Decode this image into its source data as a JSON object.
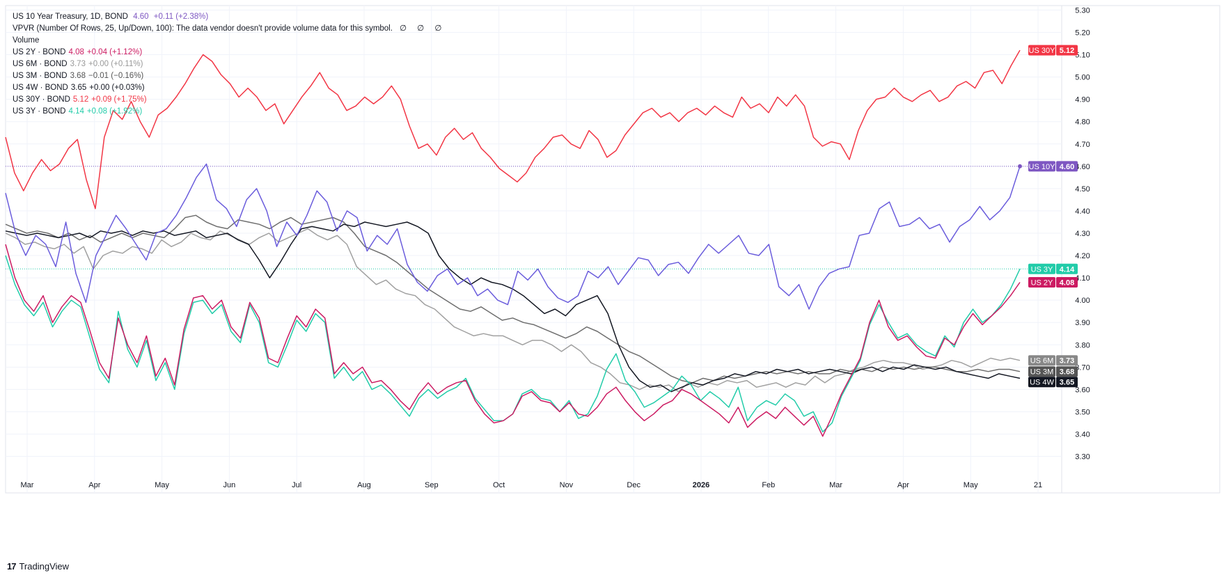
{
  "chart_data": {
    "type": "line",
    "x_ticks": [
      "Mar",
      "Apr",
      "May",
      "Jun",
      "Jul",
      "Aug",
      "Sep",
      "Oct",
      "Nov",
      "Dec",
      "2026",
      "Feb",
      "Mar",
      "Apr",
      "May",
      "21"
    ],
    "y_ticks": [
      "5.30",
      "5.20",
      "5.10",
      "5.00",
      "4.90",
      "4.80",
      "4.70",
      "4.60",
      "4.50",
      "4.40",
      "4.30",
      "4.20",
      "4.10",
      "4.00",
      "3.90",
      "3.80",
      "3.70",
      "3.60",
      "3.50",
      "3.40",
      "3.30"
    ],
    "ylim": [
      3.23,
      5.32
    ],
    "grid": true,
    "series": [
      {
        "key": "us10y",
        "color": "#6a5cdc",
        "label": "US 10Y",
        "last": "4.60",
        "values": [
          4.48,
          4.3,
          4.2,
          4.29,
          4.25,
          4.15,
          4.35,
          4.12,
          3.99,
          4.2,
          4.29,
          4.38,
          4.32,
          4.25,
          4.18,
          4.3,
          4.32,
          4.38,
          4.46,
          4.55,
          4.61,
          4.45,
          4.41,
          4.33,
          4.45,
          4.5,
          4.4,
          4.24,
          4.35,
          4.29,
          4.38,
          4.49,
          4.44,
          4.31,
          4.4,
          4.37,
          4.22,
          4.29,
          4.25,
          4.32,
          4.16,
          4.08,
          4.04,
          4.11,
          4.14,
          4.07,
          4.1,
          4.02,
          4.05,
          4.0,
          3.98,
          4.13,
          4.09,
          4.14,
          4.06,
          4.01,
          3.99,
          4.02,
          4.13,
          4.1,
          4.15,
          4.07,
          4.13,
          4.19,
          4.18,
          4.11,
          4.16,
          4.17,
          4.12,
          4.19,
          4.25,
          4.21,
          4.25,
          4.29,
          4.21,
          4.2,
          4.25,
          4.06,
          4.02,
          4.07,
          3.96,
          4.06,
          4.12,
          4.14,
          4.15,
          4.29,
          4.3,
          4.41,
          4.44,
          4.33,
          4.34,
          4.37,
          4.32,
          4.34,
          4.26,
          4.33,
          4.36,
          4.42,
          4.36,
          4.4,
          4.46,
          4.6
        ]
      },
      {
        "key": "us30y",
        "color": "#f23645",
        "label": "US 30Y",
        "last": "5.12",
        "values": [
          4.73,
          4.57,
          4.49,
          4.57,
          4.63,
          4.58,
          4.61,
          4.68,
          4.72,
          4.54,
          4.41,
          4.73,
          4.85,
          4.81,
          4.89,
          4.8,
          4.73,
          4.83,
          4.86,
          4.91,
          4.97,
          5.04,
          5.1,
          5.07,
          5.01,
          4.97,
          4.91,
          4.95,
          4.91,
          4.85,
          4.88,
          4.79,
          4.85,
          4.91,
          4.96,
          5.02,
          4.95,
          4.92,
          4.85,
          4.87,
          4.91,
          4.88,
          4.91,
          4.96,
          4.9,
          4.78,
          4.68,
          4.7,
          4.65,
          4.73,
          4.77,
          4.72,
          4.75,
          4.68,
          4.64,
          4.59,
          4.56,
          4.53,
          4.57,
          4.64,
          4.68,
          4.73,
          4.74,
          4.7,
          4.68,
          4.76,
          4.72,
          4.64,
          4.67,
          4.74,
          4.79,
          4.84,
          4.86,
          4.82,
          4.84,
          4.8,
          4.84,
          4.86,
          4.83,
          4.87,
          4.84,
          4.82,
          4.91,
          4.86,
          4.88,
          4.84,
          4.91,
          4.87,
          4.92,
          4.87,
          4.73,
          4.69,
          4.71,
          4.7,
          4.63,
          4.76,
          4.85,
          4.9,
          4.91,
          4.95,
          4.91,
          4.89,
          4.92,
          4.94,
          4.89,
          4.91,
          4.96,
          4.98,
          4.95,
          5.02,
          5.03,
          4.97,
          5.05,
          5.12
        ]
      },
      {
        "key": "us3y",
        "color": "#22cca9",
        "label": "US 3Y",
        "last": "4.14",
        "values": [
          4.2,
          4.07,
          3.98,
          3.93,
          3.99,
          3.88,
          3.95,
          4.0,
          3.97,
          3.83,
          3.69,
          3.63,
          3.95,
          3.78,
          3.7,
          3.82,
          3.64,
          3.72,
          3.6,
          3.85,
          3.99,
          4.0,
          3.94,
          3.98,
          3.86,
          3.81,
          3.98,
          3.9,
          3.72,
          3.7,
          3.8,
          3.91,
          3.86,
          3.94,
          3.9,
          3.65,
          3.7,
          3.64,
          3.68,
          3.6,
          3.62,
          3.58,
          3.53,
          3.48,
          3.56,
          3.6,
          3.56,
          3.59,
          3.61,
          3.65,
          3.56,
          3.51,
          3.46,
          3.46,
          3.49,
          3.58,
          3.6,
          3.56,
          3.55,
          3.5,
          3.55,
          3.47,
          3.49,
          3.57,
          3.69,
          3.76,
          3.64,
          3.59,
          3.52,
          3.54,
          3.57,
          3.6,
          3.66,
          3.62,
          3.55,
          3.59,
          3.56,
          3.52,
          3.61,
          3.46,
          3.52,
          3.55,
          3.53,
          3.58,
          3.55,
          3.48,
          3.5,
          3.41,
          3.45,
          3.57,
          3.65,
          3.73,
          3.89,
          3.98,
          3.9,
          3.83,
          3.85,
          3.8,
          3.77,
          3.75,
          3.84,
          3.79,
          3.9,
          3.96,
          3.9,
          3.93,
          3.98,
          4.05,
          4.14
        ]
      },
      {
        "key": "us2y",
        "color": "#cc1b62",
        "label": "US 2Y",
        "last": "4.08",
        "values": [
          4.25,
          4.1,
          4.0,
          3.95,
          4.02,
          3.9,
          3.97,
          4.02,
          3.99,
          3.86,
          3.72,
          3.65,
          3.92,
          3.8,
          3.72,
          3.84,
          3.66,
          3.74,
          3.62,
          3.87,
          4.01,
          4.02,
          3.96,
          4.0,
          3.88,
          3.83,
          3.99,
          3.92,
          3.74,
          3.72,
          3.83,
          3.93,
          3.88,
          3.96,
          3.92,
          3.67,
          3.72,
          3.67,
          3.7,
          3.63,
          3.64,
          3.6,
          3.55,
          3.51,
          3.58,
          3.63,
          3.58,
          3.61,
          3.63,
          3.64,
          3.55,
          3.49,
          3.45,
          3.46,
          3.49,
          3.57,
          3.59,
          3.55,
          3.54,
          3.5,
          3.54,
          3.49,
          3.48,
          3.52,
          3.58,
          3.61,
          3.55,
          3.5,
          3.46,
          3.49,
          3.53,
          3.55,
          3.6,
          3.58,
          3.55,
          3.52,
          3.49,
          3.45,
          3.52,
          3.43,
          3.47,
          3.5,
          3.47,
          3.52,
          3.48,
          3.44,
          3.48,
          3.39,
          3.48,
          3.58,
          3.66,
          3.74,
          3.9,
          4.0,
          3.88,
          3.82,
          3.84,
          3.79,
          3.75,
          3.74,
          3.83,
          3.8,
          3.88,
          3.94,
          3.89,
          3.93,
          3.97,
          4.02,
          4.08
        ]
      },
      {
        "key": "us6m",
        "color": "#a0a0a0",
        "label": "US 6M",
        "last": "3.73",
        "values": [
          4.3,
          4.28,
          4.25,
          4.26,
          4.24,
          4.23,
          4.25,
          4.21,
          4.24,
          4.14,
          4.2,
          4.22,
          4.21,
          4.24,
          4.23,
          4.21,
          4.27,
          4.24,
          4.26,
          4.3,
          4.28,
          4.27,
          4.31,
          4.29,
          4.27,
          4.25,
          4.28,
          4.3,
          4.26,
          4.28,
          4.3,
          4.32,
          4.29,
          4.27,
          4.29,
          4.25,
          4.15,
          4.11,
          4.07,
          4.09,
          4.05,
          4.03,
          4.02,
          3.98,
          3.96,
          3.92,
          3.88,
          3.86,
          3.84,
          3.85,
          3.84,
          3.84,
          3.82,
          3.8,
          3.82,
          3.82,
          3.8,
          3.77,
          3.8,
          3.77,
          3.72,
          3.7,
          3.67,
          3.63,
          3.62,
          3.6,
          3.62,
          3.61,
          3.62,
          3.59,
          3.63,
          3.61,
          3.63,
          3.62,
          3.64,
          3.63,
          3.64,
          3.61,
          3.62,
          3.63,
          3.61,
          3.63,
          3.62,
          3.66,
          3.63,
          3.66,
          3.67,
          3.69,
          3.7,
          3.72,
          3.73,
          3.72,
          3.72,
          3.71,
          3.69,
          3.7,
          3.71,
          3.73,
          3.72,
          3.7,
          3.72,
          3.74,
          3.73,
          3.74,
          3.73
        ]
      },
      {
        "key": "us3m",
        "color": "#6e6e6e",
        "label": "US 3M",
        "last": "3.68",
        "values": [
          4.34,
          4.32,
          4.3,
          4.31,
          4.3,
          4.28,
          4.3,
          4.27,
          4.29,
          4.26,
          4.28,
          4.3,
          4.28,
          4.3,
          4.29,
          4.28,
          4.32,
          4.37,
          4.38,
          4.35,
          4.33,
          4.32,
          4.36,
          4.35,
          4.34,
          4.32,
          4.35,
          4.37,
          4.34,
          4.35,
          4.36,
          4.37,
          4.35,
          4.3,
          4.24,
          4.22,
          4.2,
          4.17,
          4.13,
          4.09,
          4.05,
          4.02,
          3.99,
          3.96,
          3.95,
          3.97,
          3.94,
          3.91,
          3.92,
          3.9,
          3.89,
          3.87,
          3.85,
          3.83,
          3.85,
          3.88,
          3.86,
          3.83,
          3.8,
          3.77,
          3.75,
          3.72,
          3.69,
          3.66,
          3.64,
          3.63,
          3.65,
          3.64,
          3.66,
          3.65,
          3.66,
          3.67,
          3.68,
          3.67,
          3.68,
          3.67,
          3.68,
          3.67,
          3.67,
          3.69,
          3.68,
          3.69,
          3.68,
          3.7,
          3.69,
          3.7,
          3.69,
          3.7,
          3.7,
          3.69,
          3.68,
          3.68,
          3.69,
          3.68,
          3.69,
          3.69,
          3.68
        ]
      },
      {
        "key": "us4w",
        "color": "#131722",
        "label": "US 4W",
        "last": "3.65",
        "values": [
          4.31,
          4.3,
          4.29,
          4.3,
          4.29,
          4.28,
          4.29,
          4.3,
          4.28,
          4.31,
          4.3,
          4.31,
          4.29,
          4.31,
          4.3,
          4.31,
          4.29,
          4.3,
          4.31,
          4.28,
          4.29,
          4.3,
          4.27,
          4.25,
          4.18,
          4.1,
          4.17,
          4.25,
          4.32,
          4.33,
          4.32,
          4.31,
          4.34,
          4.33,
          4.35,
          4.34,
          4.33,
          4.34,
          4.35,
          4.33,
          4.3,
          4.2,
          4.14,
          4.1,
          4.07,
          4.1,
          4.08,
          4.07,
          4.05,
          4.02,
          3.98,
          3.94,
          3.96,
          3.93,
          3.98,
          4.0,
          4.02,
          3.94,
          3.8,
          3.7,
          3.64,
          3.61,
          3.62,
          3.59,
          3.61,
          3.63,
          3.62,
          3.64,
          3.65,
          3.67,
          3.66,
          3.68,
          3.67,
          3.69,
          3.68,
          3.69,
          3.67,
          3.68,
          3.69,
          3.68,
          3.67,
          3.69,
          3.7,
          3.68,
          3.7,
          3.69,
          3.71,
          3.7,
          3.69,
          3.7,
          3.68,
          3.67,
          3.66,
          3.65,
          3.67,
          3.66,
          3.65
        ]
      }
    ],
    "price_lines": [
      {
        "series": "us10y",
        "value": 4.6,
        "color": "#7e57c2"
      },
      {
        "series": "us3y",
        "value": 4.14,
        "color": "#22cca9"
      }
    ],
    "axis_tags": [
      {
        "label": "US 30Y",
        "value": "5.12",
        "color": "#f23645"
      },
      {
        "label": "US 10Y",
        "value": "4.60",
        "color": "#7e57c2"
      },
      {
        "label": "US 3Y",
        "value": "4.14",
        "color": "#22cca9"
      },
      {
        "label": "US 2Y",
        "value": "4.08",
        "color": "#cc1b62"
      },
      {
        "label": "US 6M",
        "value": "3.73",
        "color": "#888888"
      },
      {
        "label": "US 3M",
        "value": "3.68",
        "color": "#555555"
      },
      {
        "label": "US 4W",
        "value": "3.65",
        "color": "#131722"
      }
    ]
  },
  "legend": {
    "main": {
      "name": "US 10 Year Treasury, 1D, BOND",
      "value": "4.60",
      "change": "+0.11 (+2.38%)",
      "color": "#7e57c2"
    },
    "vpvr": {
      "text": "VPVR (Number Of Rows, 25, Up/Down, 100): The data vendor doesn't provide volume data for this symbol.",
      "symbols": "∅ ∅ ∅"
    },
    "volume": "Volume",
    "rows": [
      {
        "name": "US 2Y · BOND",
        "value": "4.08",
        "change": "+0.04 (+1.12%)",
        "color": "#cc1b62"
      },
      {
        "name": "US 6M · BOND",
        "value": "3.73",
        "change": "+0.00 (+0.11%)",
        "color": "#999999"
      },
      {
        "name": "US 3M · BOND",
        "value": "3.68",
        "change": "−0.01 (−0.16%)",
        "color": "#555555"
      },
      {
        "name": "US 4W · BOND",
        "value": "3.65",
        "change": "+0.00 (+0.03%)",
        "color": "#131722"
      },
      {
        "name": "US 30Y · BOND",
        "value": "5.12",
        "change": "+0.09 (+1.75%)",
        "color": "#f23645"
      },
      {
        "name": "US 3Y · BOND",
        "value": "4.14",
        "change": "+0.08 (+1.92%)",
        "color": "#22cca9"
      }
    ]
  },
  "brand": {
    "logo": "17",
    "name": "TradingView"
  }
}
